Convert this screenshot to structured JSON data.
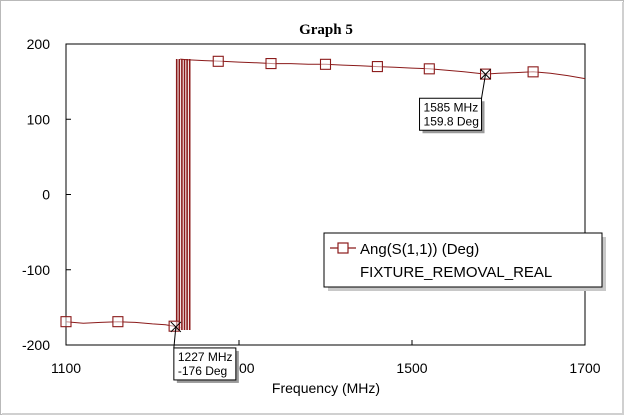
{
  "chart_data": {
    "type": "line",
    "title": "Graph 5",
    "xlabel": "Frequency (MHz)",
    "ylabel": "",
    "xlim": [
      1100,
      1700
    ],
    "ylim": [
      -200,
      200
    ],
    "x_ticks": [
      "1100",
      "1300",
      "1500",
      "1700"
    ],
    "x_tick_values": [
      1100,
      1300,
      1500,
      1700
    ],
    "y_ticks": [
      "200",
      "100",
      "0",
      "-100",
      "-200"
    ],
    "y_tick_values": [
      200,
      100,
      0,
      -100,
      -200
    ],
    "grid": false,
    "legend_position": "lower-right",
    "series": [
      {
        "name": "Ang(S(1,1)) (Deg)",
        "sub_name": "FIXTURE_REMOVAL_REAL",
        "color": "#8b1a1a",
        "marker": "square",
        "x": [
          1100,
          1120,
          1140,
          1160,
          1180,
          1200,
          1215,
          1225,
          1232,
          1232.01,
          1240,
          1260,
          1280,
          1300,
          1320,
          1340,
          1360,
          1380,
          1400,
          1420,
          1440,
          1460,
          1480,
          1500,
          1520,
          1540,
          1560,
          1585,
          1600,
          1620,
          1640,
          1660,
          1680,
          1700
        ],
        "y": [
          -169,
          -171,
          -170,
          -169,
          -170,
          -172,
          -173,
          -175,
          -177,
          180,
          179,
          178,
          177,
          176,
          175,
          174,
          174,
          173,
          173,
          172,
          171,
          170,
          169,
          168,
          167,
          165,
          163,
          160,
          161,
          162,
          163,
          161,
          158,
          154
        ],
        "marker_x": [
          1100,
          1160,
          1225,
          1276,
          1337,
          1400,
          1460,
          1520,
          1585,
          1640
        ],
        "marker_y": [
          -169,
          -169,
          -175,
          177,
          174,
          173,
          170,
          167,
          160,
          163
        ],
        "jump_lines_x": [
          1228,
          1231,
          1234,
          1237,
          1240,
          1243
        ]
      }
    ],
    "annotations": [
      {
        "x": 1585,
        "y": 159.8,
        "lines": [
          "1585 MHz",
          "159.8 Deg"
        ]
      },
      {
        "x": 1227,
        "y": -176,
        "lines": [
          "1227 MHz",
          "-176 Deg"
        ]
      }
    ]
  }
}
